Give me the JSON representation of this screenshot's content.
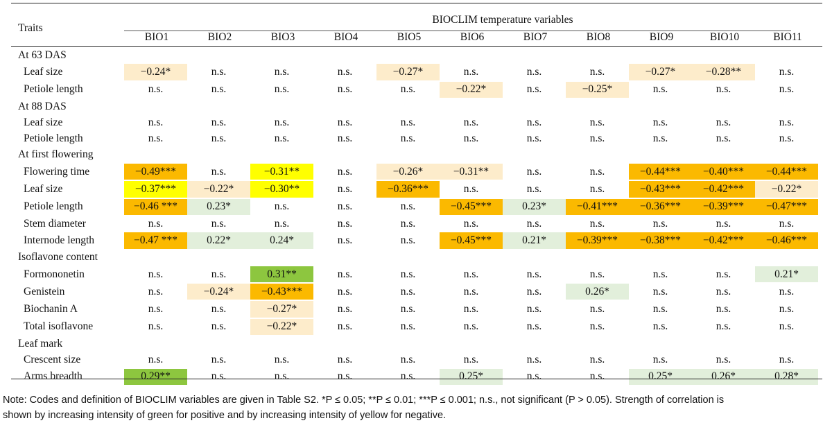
{
  "header": {
    "traits": "Traits",
    "group": "BIOCLIM temperature variables",
    "columns": [
      "BIO1",
      "BIO2",
      "BIO3",
      "BIO4",
      "BIO5",
      "BIO6",
      "BIO7",
      "BIO8",
      "BIO9",
      "BIO10",
      "BIO11"
    ]
  },
  "colors": {
    "light_orange": "#fdeccb",
    "orange": "#fbb900",
    "yellow": "#ffff00",
    "light_green": "#e2efdb",
    "green": "#8dc63f"
  },
  "rows": [
    {
      "type": "group",
      "label": "At 63 DAS"
    },
    {
      "type": "trait",
      "label": "Leaf size",
      "cells": [
        [
          "−0.24*",
          "light_orange"
        ],
        [
          "n.s.",
          ""
        ],
        [
          "n.s.",
          ""
        ],
        [
          "n.s.",
          ""
        ],
        [
          "−0.27*",
          "light_orange"
        ],
        [
          "n.s.",
          ""
        ],
        [
          "n.s.",
          ""
        ],
        [
          "n.s.",
          ""
        ],
        [
          "−0.27*",
          "light_orange"
        ],
        [
          "−0.28**",
          "light_orange"
        ],
        [
          "n.s.",
          ""
        ]
      ]
    },
    {
      "type": "trait",
      "label": "Petiole length",
      "cells": [
        [
          "n.s.",
          ""
        ],
        [
          "n.s.",
          ""
        ],
        [
          "n.s.",
          ""
        ],
        [
          "n.s.",
          ""
        ],
        [
          "n.s.",
          ""
        ],
        [
          "−0.22*",
          "light_orange"
        ],
        [
          "n.s.",
          ""
        ],
        [
          "−0.25*",
          "light_orange"
        ],
        [
          "n.s.",
          ""
        ],
        [
          "n.s.",
          ""
        ],
        [
          "n.s.",
          ""
        ]
      ]
    },
    {
      "type": "group",
      "label": "At 88 DAS"
    },
    {
      "type": "trait",
      "label": "Leaf size",
      "cells": [
        [
          "n.s.",
          ""
        ],
        [
          "n.s.",
          ""
        ],
        [
          "n.s.",
          ""
        ],
        [
          "n.s.",
          ""
        ],
        [
          "n.s.",
          ""
        ],
        [
          "n.s.",
          ""
        ],
        [
          "n.s.",
          ""
        ],
        [
          "n.s.",
          ""
        ],
        [
          "n.s.",
          ""
        ],
        [
          "n.s.",
          ""
        ],
        [
          "n.s.",
          ""
        ]
      ]
    },
    {
      "type": "trait",
      "label": "Petiole length",
      "cells": [
        [
          "n.s.",
          ""
        ],
        [
          "n.s.",
          ""
        ],
        [
          "n.s.",
          ""
        ],
        [
          "n.s.",
          ""
        ],
        [
          "n.s.",
          ""
        ],
        [
          "n.s.",
          ""
        ],
        [
          "n.s.",
          ""
        ],
        [
          "n.s.",
          ""
        ],
        [
          "n.s.",
          ""
        ],
        [
          "n.s.",
          ""
        ],
        [
          "n.s.",
          ""
        ]
      ]
    },
    {
      "type": "group",
      "label": "At first flowering"
    },
    {
      "type": "trait",
      "label": "Flowering time",
      "cells": [
        [
          "−0.49***",
          "orange"
        ],
        [
          "n.s.",
          ""
        ],
        [
          "−0.31**",
          "yellow"
        ],
        [
          "n.s.",
          ""
        ],
        [
          "−0.26*",
          "light_orange"
        ],
        [
          "−0.31**",
          "light_orange"
        ],
        [
          "n.s.",
          ""
        ],
        [
          "n.s.",
          ""
        ],
        [
          "−0.44***",
          "orange"
        ],
        [
          "−0.40***",
          "orange"
        ],
        [
          "−0.44***",
          "orange"
        ]
      ]
    },
    {
      "type": "trait",
      "label": "Leaf size",
      "cells": [
        [
          "−0.37***",
          "yellow"
        ],
        [
          "−0.22*",
          "light_orange"
        ],
        [
          "−0.30**",
          "yellow"
        ],
        [
          "n.s.",
          ""
        ],
        [
          "−0.36***",
          "orange"
        ],
        [
          "n.s.",
          ""
        ],
        [
          "n.s.",
          ""
        ],
        [
          "n.s.",
          ""
        ],
        [
          "−0.43***",
          "orange"
        ],
        [
          "−0.42***",
          "orange"
        ],
        [
          "−0.22*",
          "light_orange"
        ]
      ]
    },
    {
      "type": "trait",
      "label": "Petiole length",
      "cells": [
        [
          "−0.46 ***",
          "orange"
        ],
        [
          "0.23*",
          "light_green"
        ],
        [
          "n.s.",
          ""
        ],
        [
          "n.s.",
          ""
        ],
        [
          "n.s.",
          ""
        ],
        [
          "−0.45***",
          "orange"
        ],
        [
          "0.23*",
          "light_green"
        ],
        [
          "−0.41***",
          "orange"
        ],
        [
          "−0.36***",
          "orange"
        ],
        [
          "−0.39***",
          "orange"
        ],
        [
          "−0.47***",
          "orange"
        ]
      ]
    },
    {
      "type": "trait",
      "label": "Stem diameter",
      "cells": [
        [
          "n.s.",
          ""
        ],
        [
          "n.s.",
          ""
        ],
        [
          "n.s.",
          ""
        ],
        [
          "n.s.",
          ""
        ],
        [
          "n.s.",
          ""
        ],
        [
          "n.s.",
          ""
        ],
        [
          "n.s.",
          ""
        ],
        [
          "n.s.",
          ""
        ],
        [
          "n.s.",
          ""
        ],
        [
          "n.s.",
          ""
        ],
        [
          "n.s.",
          ""
        ]
      ]
    },
    {
      "type": "trait",
      "label": "Internode length",
      "cells": [
        [
          "−0.47 ***",
          "orange"
        ],
        [
          "0.22*",
          "light_green"
        ],
        [
          "0.24*",
          "light_green"
        ],
        [
          "n.s.",
          ""
        ],
        [
          "n.s.",
          ""
        ],
        [
          "−0.45***",
          "orange"
        ],
        [
          "0.21*",
          "light_green"
        ],
        [
          "−0.39***",
          "orange"
        ],
        [
          "−0.38***",
          "orange"
        ],
        [
          "−0.42***",
          "orange"
        ],
        [
          "−0.46***",
          "orange"
        ]
      ]
    },
    {
      "type": "group",
      "label": "Isoflavone content"
    },
    {
      "type": "trait",
      "label": "Formononetin",
      "cells": [
        [
          "n.s.",
          ""
        ],
        [
          "n.s.",
          ""
        ],
        [
          "0.31**",
          "green"
        ],
        [
          "n.s.",
          ""
        ],
        [
          "n.s.",
          ""
        ],
        [
          "n.s.",
          ""
        ],
        [
          "n.s.",
          ""
        ],
        [
          "n.s.",
          ""
        ],
        [
          "n.s.",
          ""
        ],
        [
          "n.s.",
          ""
        ],
        [
          "0.21*",
          "light_green"
        ]
      ]
    },
    {
      "type": "trait",
      "label": "Genistein",
      "cells": [
        [
          "n.s.",
          ""
        ],
        [
          "−0.24*",
          "light_orange"
        ],
        [
          "−0.43***",
          "orange"
        ],
        [
          "n.s.",
          ""
        ],
        [
          "n.s.",
          ""
        ],
        [
          "n.s.",
          ""
        ],
        [
          "n.s.",
          ""
        ],
        [
          "0.26*",
          "light_green"
        ],
        [
          "n.s.",
          ""
        ],
        [
          "n.s.",
          ""
        ],
        [
          "n.s.",
          ""
        ]
      ]
    },
    {
      "type": "trait",
      "label": "Biochanin A",
      "cells": [
        [
          "n.s.",
          ""
        ],
        [
          "n.s.",
          ""
        ],
        [
          "−0.27*",
          "light_orange"
        ],
        [
          "n.s.",
          ""
        ],
        [
          "n.s.",
          ""
        ],
        [
          "n.s.",
          ""
        ],
        [
          "n.s.",
          ""
        ],
        [
          "n.s.",
          ""
        ],
        [
          "n.s.",
          ""
        ],
        [
          "n.s.",
          ""
        ],
        [
          "n.s.",
          ""
        ]
      ]
    },
    {
      "type": "trait",
      "label": "Total isoflavone",
      "cells": [
        [
          "n.s.",
          ""
        ],
        [
          "n.s.",
          ""
        ],
        [
          "−0.22*",
          "light_orange"
        ],
        [
          "n.s.",
          ""
        ],
        [
          "n.s.",
          ""
        ],
        [
          "n.s.",
          ""
        ],
        [
          "n.s.",
          ""
        ],
        [
          "n.s.",
          ""
        ],
        [
          "n.s.",
          ""
        ],
        [
          "n.s.",
          ""
        ],
        [
          "n.s.",
          ""
        ]
      ]
    },
    {
      "type": "group",
      "label": "Leaf mark"
    },
    {
      "type": "trait",
      "label": "Crescent size",
      "cells": [
        [
          "n.s.",
          ""
        ],
        [
          "n.s.",
          ""
        ],
        [
          "n.s.",
          ""
        ],
        [
          "n.s.",
          ""
        ],
        [
          "n.s.",
          ""
        ],
        [
          "n.s.",
          ""
        ],
        [
          "n.s.",
          ""
        ],
        [
          "n.s.",
          ""
        ],
        [
          "n.s.",
          ""
        ],
        [
          "n.s.",
          ""
        ],
        [
          "n.s.",
          ""
        ]
      ]
    },
    {
      "type": "trait",
      "label": "Arms breadth",
      "cells": [
        [
          "0.29**",
          "green"
        ],
        [
          "n.s.",
          ""
        ],
        [
          "n.s.",
          ""
        ],
        [
          "n.s.",
          ""
        ],
        [
          "n.s.",
          ""
        ],
        [
          "0.25*",
          "light_green"
        ],
        [
          "n.s.",
          ""
        ],
        [
          "n.s.",
          ""
        ],
        [
          "0.25*",
          "light_green"
        ],
        [
          "0.26*",
          "light_green"
        ],
        [
          "0.28*",
          "light_green"
        ]
      ]
    }
  ],
  "note": {
    "line1": "Note: Codes and definition of BIOCLIM variables are given in Table S2. *P ≤ 0.05; **P ≤ 0.01; ***P ≤ 0.001; n.s., not significant (P > 0.05). Strength of correlation is",
    "line2": "shown by increasing intensity of green for positive and by increasing intensity of yellow for negative."
  }
}
